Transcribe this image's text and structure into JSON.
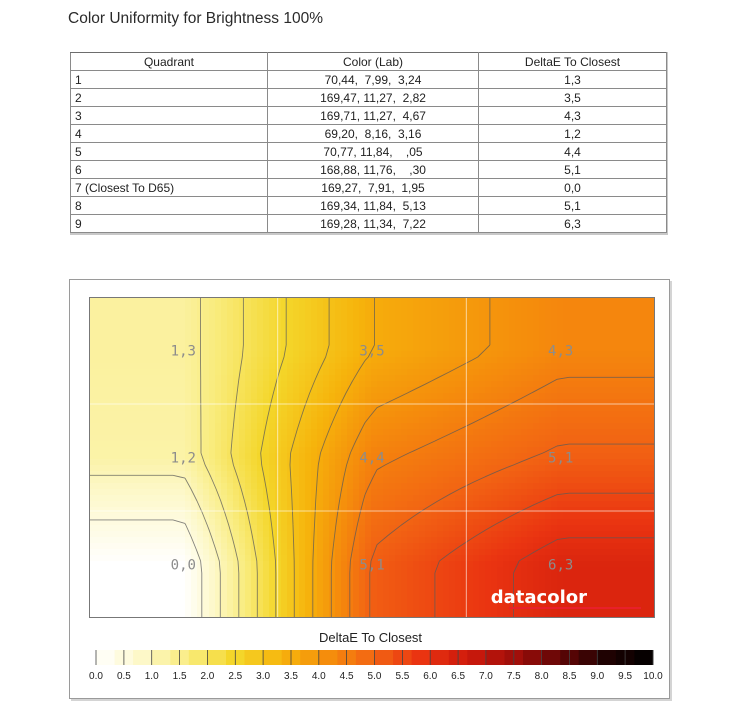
{
  "title": "Color Uniformity for Brightness 100%",
  "table": {
    "headers": [
      "Quadrant",
      "Color (Lab)",
      "DeltaE To Closest"
    ],
    "rows": [
      [
        "1",
        "70,44,  7,99,  3,24",
        "1,3"
      ],
      [
        "2",
        "169,47, 11,27,  2,82",
        "3,5"
      ],
      [
        "3",
        "169,71, 11,27,  4,67",
        "4,3"
      ],
      [
        "4",
        "69,20,  8,16,  3,16",
        "1,2"
      ],
      [
        "5",
        "70,77, 11,84,    ,05",
        "4,4"
      ],
      [
        "6",
        "168,88, 11,76,    ,30",
        "5,1"
      ],
      [
        "7 (Closest To D65)",
        "169,27,  7,91,  1,95",
        "0,0"
      ],
      [
        "8",
        "169,34, 11,84,  5,13",
        "5,1"
      ],
      [
        "9",
        "169,28, 11,34,  7,22",
        "6,3"
      ]
    ]
  },
  "chart_data": {
    "type": "heatmap",
    "grid": {
      "rows": 3,
      "cols": 3
    },
    "cells": [
      {
        "row": 0,
        "col": 0,
        "label": "1,3",
        "value": 1.3
      },
      {
        "row": 0,
        "col": 1,
        "label": "3,5",
        "value": 3.5
      },
      {
        "row": 0,
        "col": 2,
        "label": "4,3",
        "value": 4.3
      },
      {
        "row": 1,
        "col": 0,
        "label": "1,2",
        "value": 1.2
      },
      {
        "row": 1,
        "col": 1,
        "label": "4,4",
        "value": 4.4
      },
      {
        "row": 1,
        "col": 2,
        "label": "5,1",
        "value": 5.1
      },
      {
        "row": 2,
        "col": 0,
        "label": "0,0",
        "value": 0.0
      },
      {
        "row": 2,
        "col": 1,
        "label": "5,1",
        "value": 5.1
      },
      {
        "row": 2,
        "col": 2,
        "label": "6,3",
        "value": 6.3
      }
    ],
    "legend_title": "DeltaE To Closest",
    "scale_min": 0,
    "scale_max": 10,
    "scale_ticks": [
      "0.0",
      "0.5",
      "1.0",
      "1.5",
      "2.0",
      "2.5",
      "3.0",
      "3.5",
      "4.0",
      "4.5",
      "5.0",
      "5.5",
      "6.0",
      "6.5",
      "7.0",
      "7.5",
      "8.0",
      "8.5",
      "9.0",
      "9.5",
      "10.0"
    ],
    "contours": true,
    "grid_lines": true,
    "brand": "datacolor",
    "colors": {
      "stops": [
        "#ffffff",
        "#fdf8c8",
        "#f9ec7e",
        "#f4d62a",
        "#f6b40c",
        "#f58d0c",
        "#f26413",
        "#ea3411",
        "#cf1a0c",
        "#a10f0a",
        "#620606",
        "#1f0202",
        "#000000"
      ]
    }
  }
}
